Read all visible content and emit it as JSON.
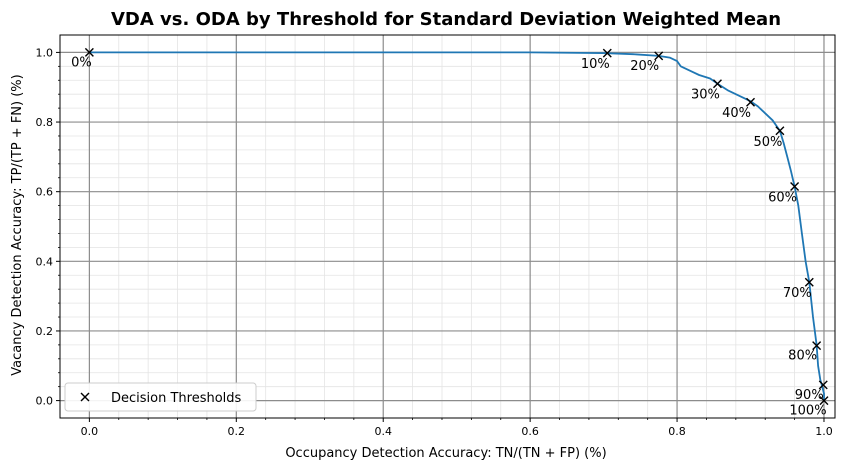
{
  "chart_data": {
    "type": "line",
    "title": "VDA vs. ODA by Threshold for Standard Deviation Weighted Mean",
    "xlabel": "Occupancy Detection Accuracy: TN/(TN + FP) (%)",
    "ylabel": "Vacancy Detection Accuracy: TP/(TP + FN) (%)",
    "xlim": [
      -0.04,
      1.015
    ],
    "ylim": [
      -0.05,
      1.05
    ],
    "x_ticks": [
      "0.0",
      "0.2",
      "0.4",
      "0.6",
      "0.8",
      "1.0"
    ],
    "y_ticks": [
      "0.0",
      "0.2",
      "0.4",
      "0.6",
      "0.8",
      "1.0"
    ],
    "grid": "major and minor",
    "series": [
      {
        "color": "#1f77b4",
        "x": [
          0.0,
          0.2,
          0.4,
          0.6,
          0.7,
          0.74,
          0.775,
          0.79,
          0.8,
          0.805,
          0.81,
          0.82,
          0.83,
          0.845,
          0.855,
          0.87,
          0.885,
          0.9,
          0.91,
          0.92,
          0.93,
          0.94,
          0.945,
          0.95,
          0.955,
          0.96,
          0.965,
          0.97,
          0.975,
          0.98,
          0.985,
          0.99,
          0.992,
          0.995,
          0.997,
          1.0,
          1.0
        ],
        "y": [
          1.0,
          1.0,
          1.0,
          1.0,
          0.998,
          0.995,
          0.99,
          0.985,
          0.975,
          0.96,
          0.955,
          0.945,
          0.935,
          0.925,
          0.91,
          0.89,
          0.875,
          0.86,
          0.845,
          0.825,
          0.805,
          0.775,
          0.74,
          0.7,
          0.66,
          0.615,
          0.56,
          0.48,
          0.4,
          0.34,
          0.24,
          0.16,
          0.1,
          0.06,
          0.045,
          0.02,
          0.0
        ]
      }
    ],
    "markers": {
      "name": "Decision Thresholds",
      "symbol": "x",
      "color": "#000000",
      "points": [
        {
          "label": "0%",
          "x": 0.0,
          "y": 1.0
        },
        {
          "label": "10%",
          "x": 0.705,
          "y": 0.998
        },
        {
          "label": "20%",
          "x": 0.775,
          "y": 0.99
        },
        {
          "label": "30%",
          "x": 0.855,
          "y": 0.91
        },
        {
          "label": "40%",
          "x": 0.9,
          "y": 0.857
        },
        {
          "label": "50%",
          "x": 0.94,
          "y": 0.775
        },
        {
          "label": "60%",
          "x": 0.96,
          "y": 0.615
        },
        {
          "label": "70%",
          "x": 0.98,
          "y": 0.34
        },
        {
          "label": "80%",
          "x": 0.99,
          "y": 0.158
        },
        {
          "label": "90%",
          "x": 0.999,
          "y": 0.045
        },
        {
          "label": "100%",
          "x": 1.0,
          "y": 0.0
        }
      ]
    },
    "legend": {
      "position": "lower-left",
      "entries": [
        "Decision Thresholds"
      ]
    }
  }
}
